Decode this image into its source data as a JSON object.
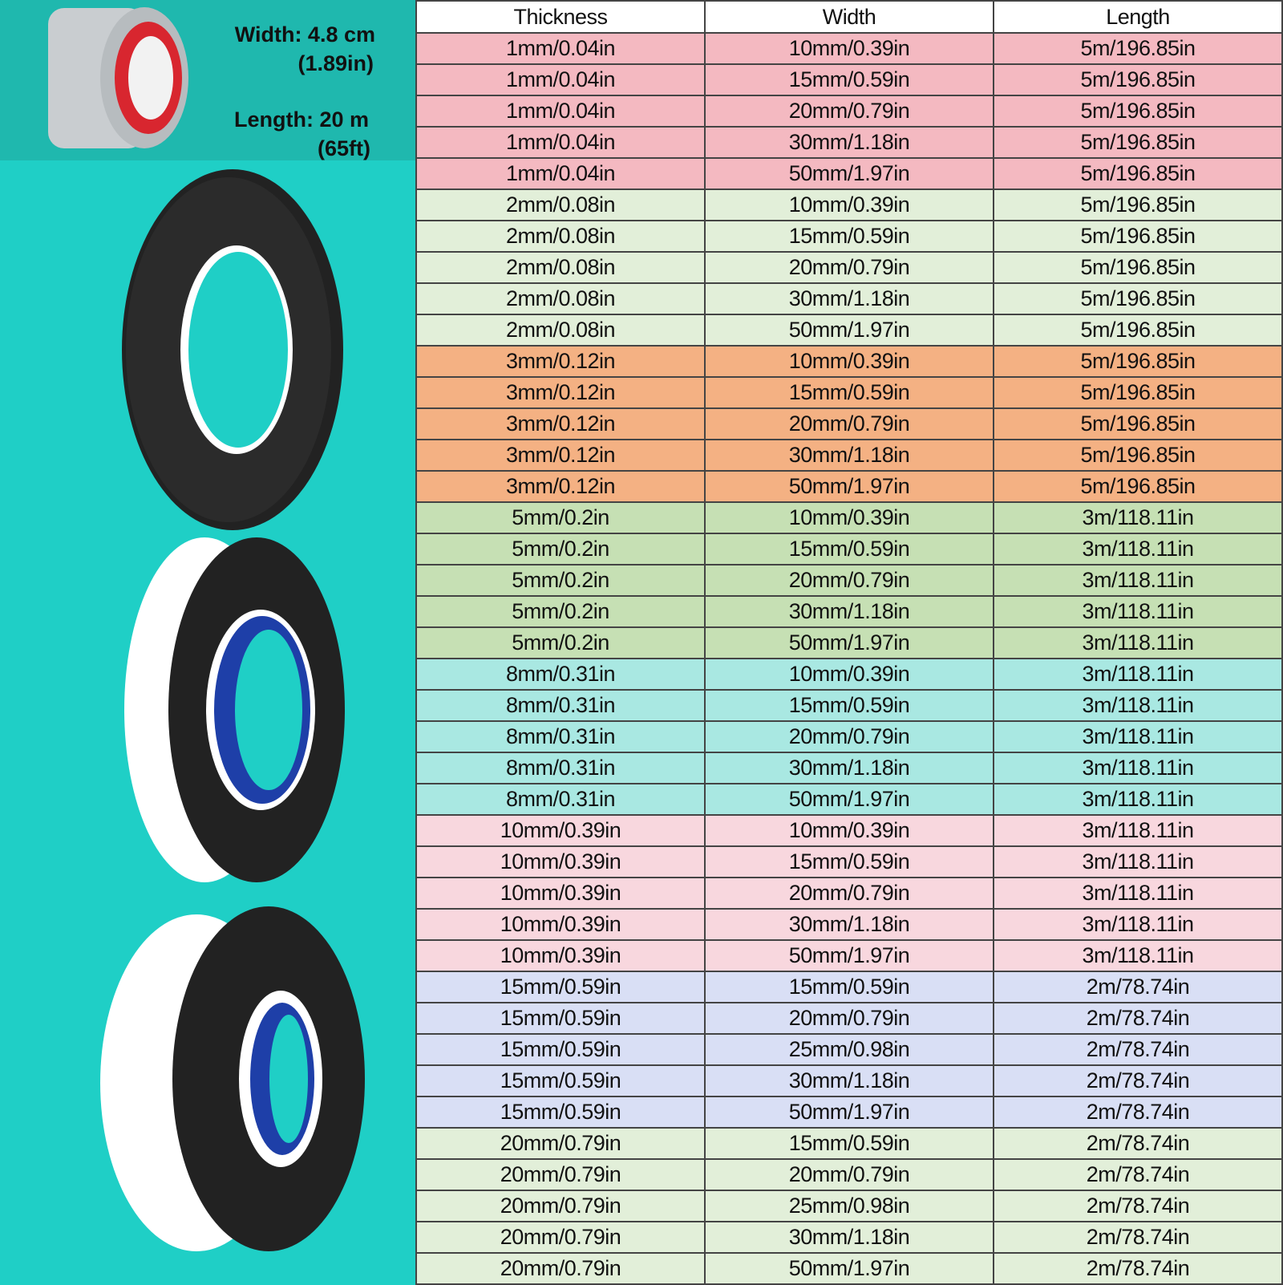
{
  "product": {
    "width": "Width: 4.8 cm",
    "width_alt": "(1.89in)",
    "length": "Length: 20 m",
    "length_alt": "(65ft)"
  },
  "table": {
    "header": [
      "Thickness",
      "Width",
      "Length"
    ],
    "rows": [
      [
        "1mm/0.04in",
        "10mm/0.39in",
        "5m/196.85in"
      ],
      [
        "1mm/0.04in",
        "15mm/0.59in",
        "5m/196.85in"
      ],
      [
        "1mm/0.04in",
        "20mm/0.79in",
        "5m/196.85in"
      ],
      [
        "1mm/0.04in",
        "30mm/1.18in",
        "5m/196.85in"
      ],
      [
        "1mm/0.04in",
        "50mm/1.97in",
        "5m/196.85in"
      ],
      [
        "2mm/0.08in",
        "10mm/0.39in",
        "5m/196.85in"
      ],
      [
        "2mm/0.08in",
        "15mm/0.59in",
        "5m/196.85in"
      ],
      [
        "2mm/0.08in",
        "20mm/0.79in",
        "5m/196.85in"
      ],
      [
        "2mm/0.08in",
        "30mm/1.18in",
        "5m/196.85in"
      ],
      [
        "2mm/0.08in",
        "50mm/1.97in",
        "5m/196.85in"
      ],
      [
        "3mm/0.12in",
        "10mm/0.39in",
        "5m/196.85in"
      ],
      [
        "3mm/0.12in",
        "15mm/0.59in",
        "5m/196.85in"
      ],
      [
        "3mm/0.12in",
        "20mm/0.79in",
        "5m/196.85in"
      ],
      [
        "3mm/0.12in",
        "30mm/1.18in",
        "5m/196.85in"
      ],
      [
        "3mm/0.12in",
        "50mm/1.97in",
        "5m/196.85in"
      ],
      [
        "5mm/0.2in",
        "10mm/0.39in",
        "3m/118.11in"
      ],
      [
        "5mm/0.2in",
        "15mm/0.59in",
        "3m/118.11in"
      ],
      [
        "5mm/0.2in",
        "20mm/0.79in",
        "3m/118.11in"
      ],
      [
        "5mm/0.2in",
        "30mm/1.18in",
        "3m/118.11in"
      ],
      [
        "5mm/0.2in",
        "50mm/1.97in",
        "3m/118.11in"
      ],
      [
        "8mm/0.31in",
        "10mm/0.39in",
        "3m/118.11in"
      ],
      [
        "8mm/0.31in",
        "15mm/0.59in",
        "3m/118.11in"
      ],
      [
        "8mm/0.31in",
        "20mm/0.79in",
        "3m/118.11in"
      ],
      [
        "8mm/0.31in",
        "30mm/1.18in",
        "3m/118.11in"
      ],
      [
        "8mm/0.31in",
        "50mm/1.97in",
        "3m/118.11in"
      ],
      [
        "10mm/0.39in",
        "10mm/0.39in",
        "3m/118.11in"
      ],
      [
        "10mm/0.39in",
        "15mm/0.59in",
        "3m/118.11in"
      ],
      [
        "10mm/0.39in",
        "20mm/0.79in",
        "3m/118.11in"
      ],
      [
        "10mm/0.39in",
        "30mm/1.18in",
        "3m/118.11in"
      ],
      [
        "10mm/0.39in",
        "50mm/1.97in",
        "3m/118.11in"
      ],
      [
        "15mm/0.59in",
        "15mm/0.59in",
        "2m/78.74in"
      ],
      [
        "15mm/0.59in",
        "20mm/0.79in",
        "2m/78.74in"
      ],
      [
        "15mm/0.59in",
        "25mm/0.98in",
        "2m/78.74in"
      ],
      [
        "15mm/0.59in",
        "30mm/1.18in",
        "2m/78.74in"
      ],
      [
        "15mm/0.59in",
        "50mm/1.97in",
        "2m/78.74in"
      ],
      [
        "20mm/0.79in",
        "15mm/0.59in",
        "2m/78.74in"
      ],
      [
        "20mm/0.79in",
        "20mm/0.79in",
        "2m/78.74in"
      ],
      [
        "20mm/0.79in",
        "25mm/0.98in",
        "2m/78.74in"
      ],
      [
        "20mm/0.79in",
        "30mm/1.18in",
        "2m/78.74in"
      ],
      [
        "20mm/0.79in",
        "50mm/1.97in",
        "2m/78.74in"
      ]
    ]
  }
}
